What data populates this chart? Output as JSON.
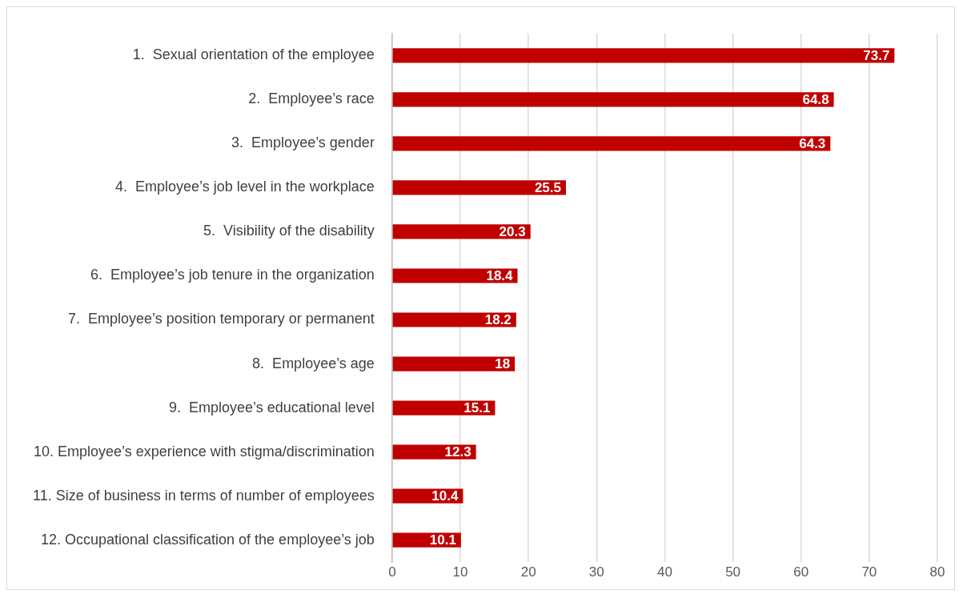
{
  "chart_data": {
    "type": "bar",
    "orientation": "horizontal",
    "categories": [
      "1.  Sexual orientation of the employee",
      "2.  Employee’s race",
      "3.  Employee’s gender",
      "4.  Employee’s job level in the workplace",
      "5.  Visibility of the disability",
      "6.  Employee’s job tenure in the organization",
      "7.  Employee’s position temporary or permanent",
      "8.  Employee’s age",
      "9.  Employee’s educational level",
      "10. Employee’s experience with stigma/discrimination",
      "11. Size of business in terms of number of employees",
      "12. Occupational classification of the employee’s job"
    ],
    "values": [
      73.7,
      64.8,
      64.3,
      25.5,
      20.3,
      18.4,
      18.2,
      18,
      15.1,
      12.3,
      10.4,
      10.1
    ],
    "color": "#c00000",
    "xlim": [
      0,
      80
    ],
    "xticks": [
      0,
      10,
      20,
      30,
      40,
      50,
      60,
      70,
      80
    ],
    "grid": "x",
    "data_labels": true,
    "legend": false
  }
}
